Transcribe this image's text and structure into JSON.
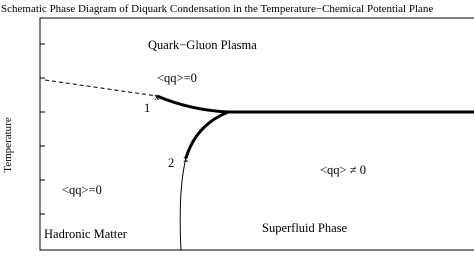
{
  "header": {
    "title": "Schematic Phase Diagram of Diquark Condensation in the Temperature−Chemical Potential Plane"
  },
  "axis": {
    "y_label": "Temperature"
  },
  "regions": [
    {
      "label": "Quark−Gluon Plasma"
    },
    {
      "label": "<qq>=0"
    },
    {
      "label": "<qq> ≠ 0"
    },
    {
      "label": "<qq>=0"
    },
    {
      "label": "Hadronic Matter"
    },
    {
      "label": "Superfluid Phase"
    }
  ],
  "points": [
    {
      "marker": "x",
      "label": "1"
    },
    {
      "marker": "x",
      "label": "2"
    }
  ]
}
